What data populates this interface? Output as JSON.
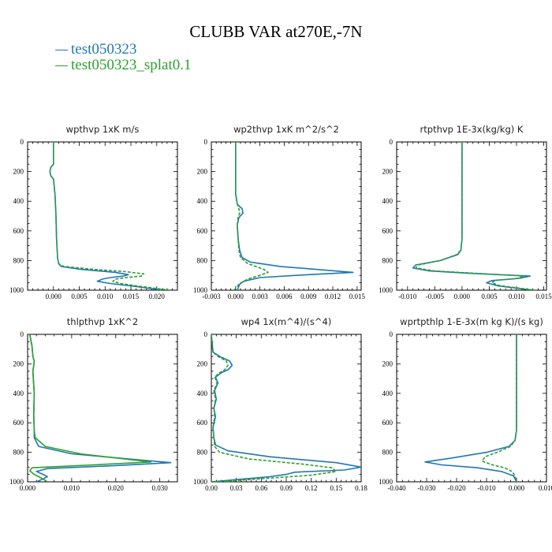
{
  "figure": {
    "title": "CLUBB VAR at270E,-7N"
  },
  "legend": [
    {
      "label": "test050323",
      "color": "#1f77b4",
      "style": "solid"
    },
    {
      "label": "test050323_splat0.1",
      "color": "#2ca02c",
      "style": "solid"
    }
  ],
  "chart_data": [
    {
      "type": "line",
      "title": "wpthvp 1xK m/s",
      "xlim": [
        -0.005,
        0.024
      ],
      "xticks": [
        0.0,
        0.005,
        0.01,
        0.015,
        0.02
      ],
      "xtick_labels": [
        "0.000",
        "0.005",
        "0.010",
        "0.015",
        "0.020"
      ],
      "ylim": [
        1000,
        0
      ],
      "yticks": [
        0,
        200,
        400,
        600,
        800,
        1000
      ],
      "series": [
        {
          "name": "test050323",
          "color": "#1f77b4",
          "dash": "",
          "x": [
            0.0,
            0.0,
            -0.0005,
            -0.0007,
            -0.0005,
            0.0,
            0.0003,
            0.0005,
            0.0006,
            0.0008,
            0.001,
            0.0015,
            0.0055,
            0.012,
            0.0145,
            0.0135,
            0.011,
            0.0095,
            0.0085,
            0.011,
            0.016,
            0.021
          ],
          "y": [
            0,
            150,
            170,
            200,
            230,
            250,
            350,
            500,
            650,
            780,
            820,
            840,
            860,
            880,
            895,
            905,
            915,
            925,
            940,
            955,
            975,
            1000
          ]
        },
        {
          "name": "test050323_splat0.1",
          "color": "#2ca02c",
          "dash": "4,2",
          "x": [
            0.0,
            0.0,
            -0.0005,
            -0.0007,
            -0.0005,
            0.0,
            0.0003,
            0.0005,
            0.0006,
            0.0008,
            0.001,
            0.002,
            0.008,
            0.014,
            0.0175,
            0.017,
            0.014,
            0.012,
            0.0115,
            0.013,
            0.017,
            0.0225
          ],
          "y": [
            0,
            150,
            170,
            200,
            230,
            250,
            350,
            500,
            650,
            780,
            820,
            840,
            860,
            875,
            890,
            905,
            915,
            925,
            940,
            955,
            975,
            1000
          ]
        }
      ]
    },
    {
      "type": "line",
      "title": "wp2thvp 1xK m^2/s^2",
      "xlim": [
        -0.003,
        0.0155
      ],
      "xticks": [
        -0.003,
        0.0,
        0.003,
        0.006,
        0.009,
        0.012,
        0.015
      ],
      "xtick_labels": [
        "-0.003",
        "0.000",
        "0.003",
        "0.006",
        "0.009",
        "0.012",
        "0.015"
      ],
      "ylim": [
        1000,
        0
      ],
      "yticks": [
        0,
        200,
        400,
        600,
        800,
        1000
      ],
      "series": [
        {
          "name": "test050323",
          "color": "#1f77b4",
          "dash": "",
          "x": [
            0.0,
            0.0,
            0.0,
            0.0002,
            0.0008,
            0.0009,
            0.0004,
            0.0002,
            0.0003,
            0.0005,
            0.0008,
            0.0018,
            0.0055,
            0.0145,
            0.009,
            0.003,
            0.001,
            0.0005,
            0.0002
          ],
          "y": [
            0,
            300,
            350,
            420,
            450,
            480,
            510,
            560,
            650,
            730,
            780,
            810,
            840,
            880,
            895,
            915,
            940,
            960,
            1000
          ]
        },
        {
          "name": "test050323_splat0.1",
          "color": "#2ca02c",
          "dash": "4,2",
          "x": [
            0.0,
            0.0,
            0.0,
            0.0002,
            0.0004,
            0.0005,
            0.0003,
            0.0002,
            0.0003,
            0.0004,
            0.0006,
            0.0015,
            0.0035,
            0.004,
            0.003,
            0.0015,
            0.0005,
            -0.0002
          ],
          "y": [
            0,
            300,
            350,
            420,
            450,
            480,
            510,
            560,
            650,
            730,
            780,
            820,
            860,
            880,
            900,
            925,
            955,
            1000
          ]
        }
      ]
    },
    {
      "type": "line",
      "title": "rtpthvp 1E-3x(kg/kg) K",
      "xlim": [
        -0.012,
        0.0155
      ],
      "xticks": [
        -0.01,
        -0.005,
        0.0,
        0.005,
        0.01,
        0.015
      ],
      "xtick_labels": [
        "-0.010",
        "-0.005",
        "0.000",
        "0.005",
        "0.010",
        "0.015"
      ],
      "ylim": [
        1000,
        0
      ],
      "yticks": [
        0,
        200,
        400,
        600,
        800,
        1000
      ],
      "series": [
        {
          "name": "test050323",
          "color": "#1f77b4",
          "dash": "",
          "x": [
            0.0,
            0.0,
            0.0,
            0.0,
            -0.0002,
            -0.0008,
            -0.004,
            -0.0085,
            -0.009,
            -0.006,
            0.001,
            0.0125,
            0.0105,
            0.0055,
            0.0045,
            0.0065,
            0.013
          ],
          "y": [
            0,
            200,
            400,
            650,
            730,
            760,
            800,
            830,
            850,
            870,
            885,
            905,
            920,
            935,
            950,
            970,
            1000
          ]
        },
        {
          "name": "test050323_splat0.1",
          "color": "#2ca02c",
          "dash": "4,2",
          "x": [
            0.0,
            0.0,
            0.0,
            0.0,
            -0.0002,
            -0.001,
            -0.004,
            -0.008,
            -0.0085,
            -0.005,
            0.002,
            0.0115,
            0.01,
            0.006,
            0.0055,
            0.007,
            0.0135
          ],
          "y": [
            0,
            200,
            400,
            650,
            730,
            760,
            800,
            830,
            850,
            870,
            885,
            905,
            920,
            935,
            950,
            970,
            1000
          ]
        }
      ]
    },
    {
      "type": "line",
      "title": "thlpthvp 1xK^2",
      "xlim": [
        0.0,
        0.034
      ],
      "xticks": [
        0.0,
        0.01,
        0.02,
        0.03
      ],
      "xtick_labels": [
        "0.000",
        "0.010",
        "0.020",
        "0.030"
      ],
      "ylim": [
        1000,
        0
      ],
      "yticks": [
        0,
        200,
        400,
        600,
        800,
        1000
      ],
      "series": [
        {
          "name": "test050323",
          "color": "#1f77b4",
          "dash": "",
          "x": [
            0.0005,
            0.001,
            0.0012,
            0.0015,
            0.0014,
            0.0012,
            0.0015,
            0.0014,
            0.0015,
            0.0015,
            0.0025,
            0.01,
            0.025,
            0.0325,
            0.02,
            0.0045,
            0.002,
            0.0035,
            0.0045,
            0.0035,
            0.002
          ],
          "y": [
            0,
            80,
            150,
            180,
            210,
            250,
            400,
            550,
            650,
            700,
            760,
            810,
            850,
            870,
            890,
            910,
            930,
            950,
            965,
            980,
            1000
          ]
        },
        {
          "name": "test050323_splat0.1",
          "color": "#2ca02c",
          "dash": "",
          "x": [
            0.0005,
            0.001,
            0.0012,
            0.0015,
            0.0014,
            0.0012,
            0.0015,
            0.0014,
            0.0015,
            0.0017,
            0.004,
            0.012,
            0.022,
            0.028,
            0.015,
            0.001,
            0.0005,
            0.0015,
            0.0025,
            0.0035,
            0.0045
          ],
          "y": [
            0,
            80,
            150,
            180,
            210,
            250,
            400,
            550,
            650,
            700,
            760,
            810,
            845,
            865,
            885,
            905,
            925,
            950,
            965,
            980,
            1000
          ]
        }
      ]
    },
    {
      "type": "line",
      "title": "wp4 1x(m^4)/(s^4)",
      "xlim": [
        0.0,
        0.18
      ],
      "xticks": [
        0.0,
        0.03,
        0.06,
        0.09,
        0.12,
        0.15,
        0.18
      ],
      "xtick_labels": [
        "0.00",
        "0.03",
        "0.06",
        "0.09",
        "0.12",
        "0.15",
        "0.18"
      ],
      "ylim": [
        1000,
        0
      ],
      "yticks": [
        0,
        200,
        400,
        600,
        800,
        1000
      ],
      "series": [
        {
          "name": "test050323",
          "color": "#1f77b4",
          "dash": "",
          "x": [
            0.0,
            0.002,
            0.01,
            0.022,
            0.025,
            0.02,
            0.012,
            0.005,
            0.008,
            0.004,
            0.006,
            0.003,
            0.005,
            0.002,
            0.003,
            0.005,
            0.02,
            0.07,
            0.15,
            0.18,
            0.16,
            0.1,
            0.09,
            0.07,
            0.03,
            0.0
          ],
          "y": [
            0,
            120,
            150,
            180,
            210,
            240,
            260,
            290,
            330,
            380,
            440,
            500,
            560,
            630,
            700,
            750,
            790,
            830,
            870,
            900,
            920,
            935,
            950,
            965,
            985,
            1000
          ]
        },
        {
          "name": "test050323_splat0.1",
          "color": "#2ca02c",
          "dash": "4,2",
          "x": [
            0.0,
            0.002,
            0.008,
            0.018,
            0.02,
            0.016,
            0.01,
            0.004,
            0.007,
            0.003,
            0.005,
            0.003,
            0.004,
            0.002,
            0.003,
            0.004,
            0.01,
            0.045,
            0.11,
            0.145,
            0.15,
            0.12,
            0.07,
            0.02,
            0.0
          ],
          "y": [
            0,
            120,
            150,
            180,
            210,
            240,
            260,
            290,
            330,
            380,
            440,
            500,
            560,
            630,
            700,
            760,
            800,
            845,
            880,
            905,
            930,
            955,
            975,
            995,
            1000
          ]
        }
      ]
    },
    {
      "type": "line",
      "title": "wprtpthlp 1-E-3x(m kg K)/(s kg)",
      "xlim": [
        -0.04,
        0.01
      ],
      "xticks": [
        -0.04,
        -0.03,
        -0.02,
        -0.01,
        0.0,
        0.01
      ],
      "xtick_labels": [
        "-0.040",
        "-0.030",
        "-0.020",
        "-0.010",
        "0.000",
        "0.010"
      ],
      "ylim": [
        1000,
        0
      ],
      "yticks": [
        0,
        200,
        400,
        600,
        800,
        1000
      ],
      "series": [
        {
          "name": "test050323",
          "color": "#1f77b4",
          "dash": "",
          "x": [
            0.0,
            0.0,
            0.0,
            0.0,
            -0.0005,
            -0.0025,
            -0.01,
            -0.022,
            -0.0305,
            -0.025,
            -0.013,
            -0.005,
            -0.001,
            0.0
          ],
          "y": [
            0,
            200,
            400,
            650,
            720,
            760,
            800,
            840,
            865,
            885,
            905,
            930,
            960,
            1000
          ]
        },
        {
          "name": "test050323_splat0.1",
          "color": "#2ca02c",
          "dash": "4,2",
          "x": [
            0.0,
            0.0,
            0.0,
            0.0,
            -0.0005,
            -0.002,
            -0.0065,
            -0.0105,
            -0.0115,
            -0.008,
            -0.004,
            -0.0015,
            -0.0005,
            0.0
          ],
          "y": [
            0,
            200,
            400,
            650,
            720,
            760,
            800,
            830,
            860,
            885,
            905,
            930,
            960,
            1000
          ]
        }
      ]
    }
  ]
}
